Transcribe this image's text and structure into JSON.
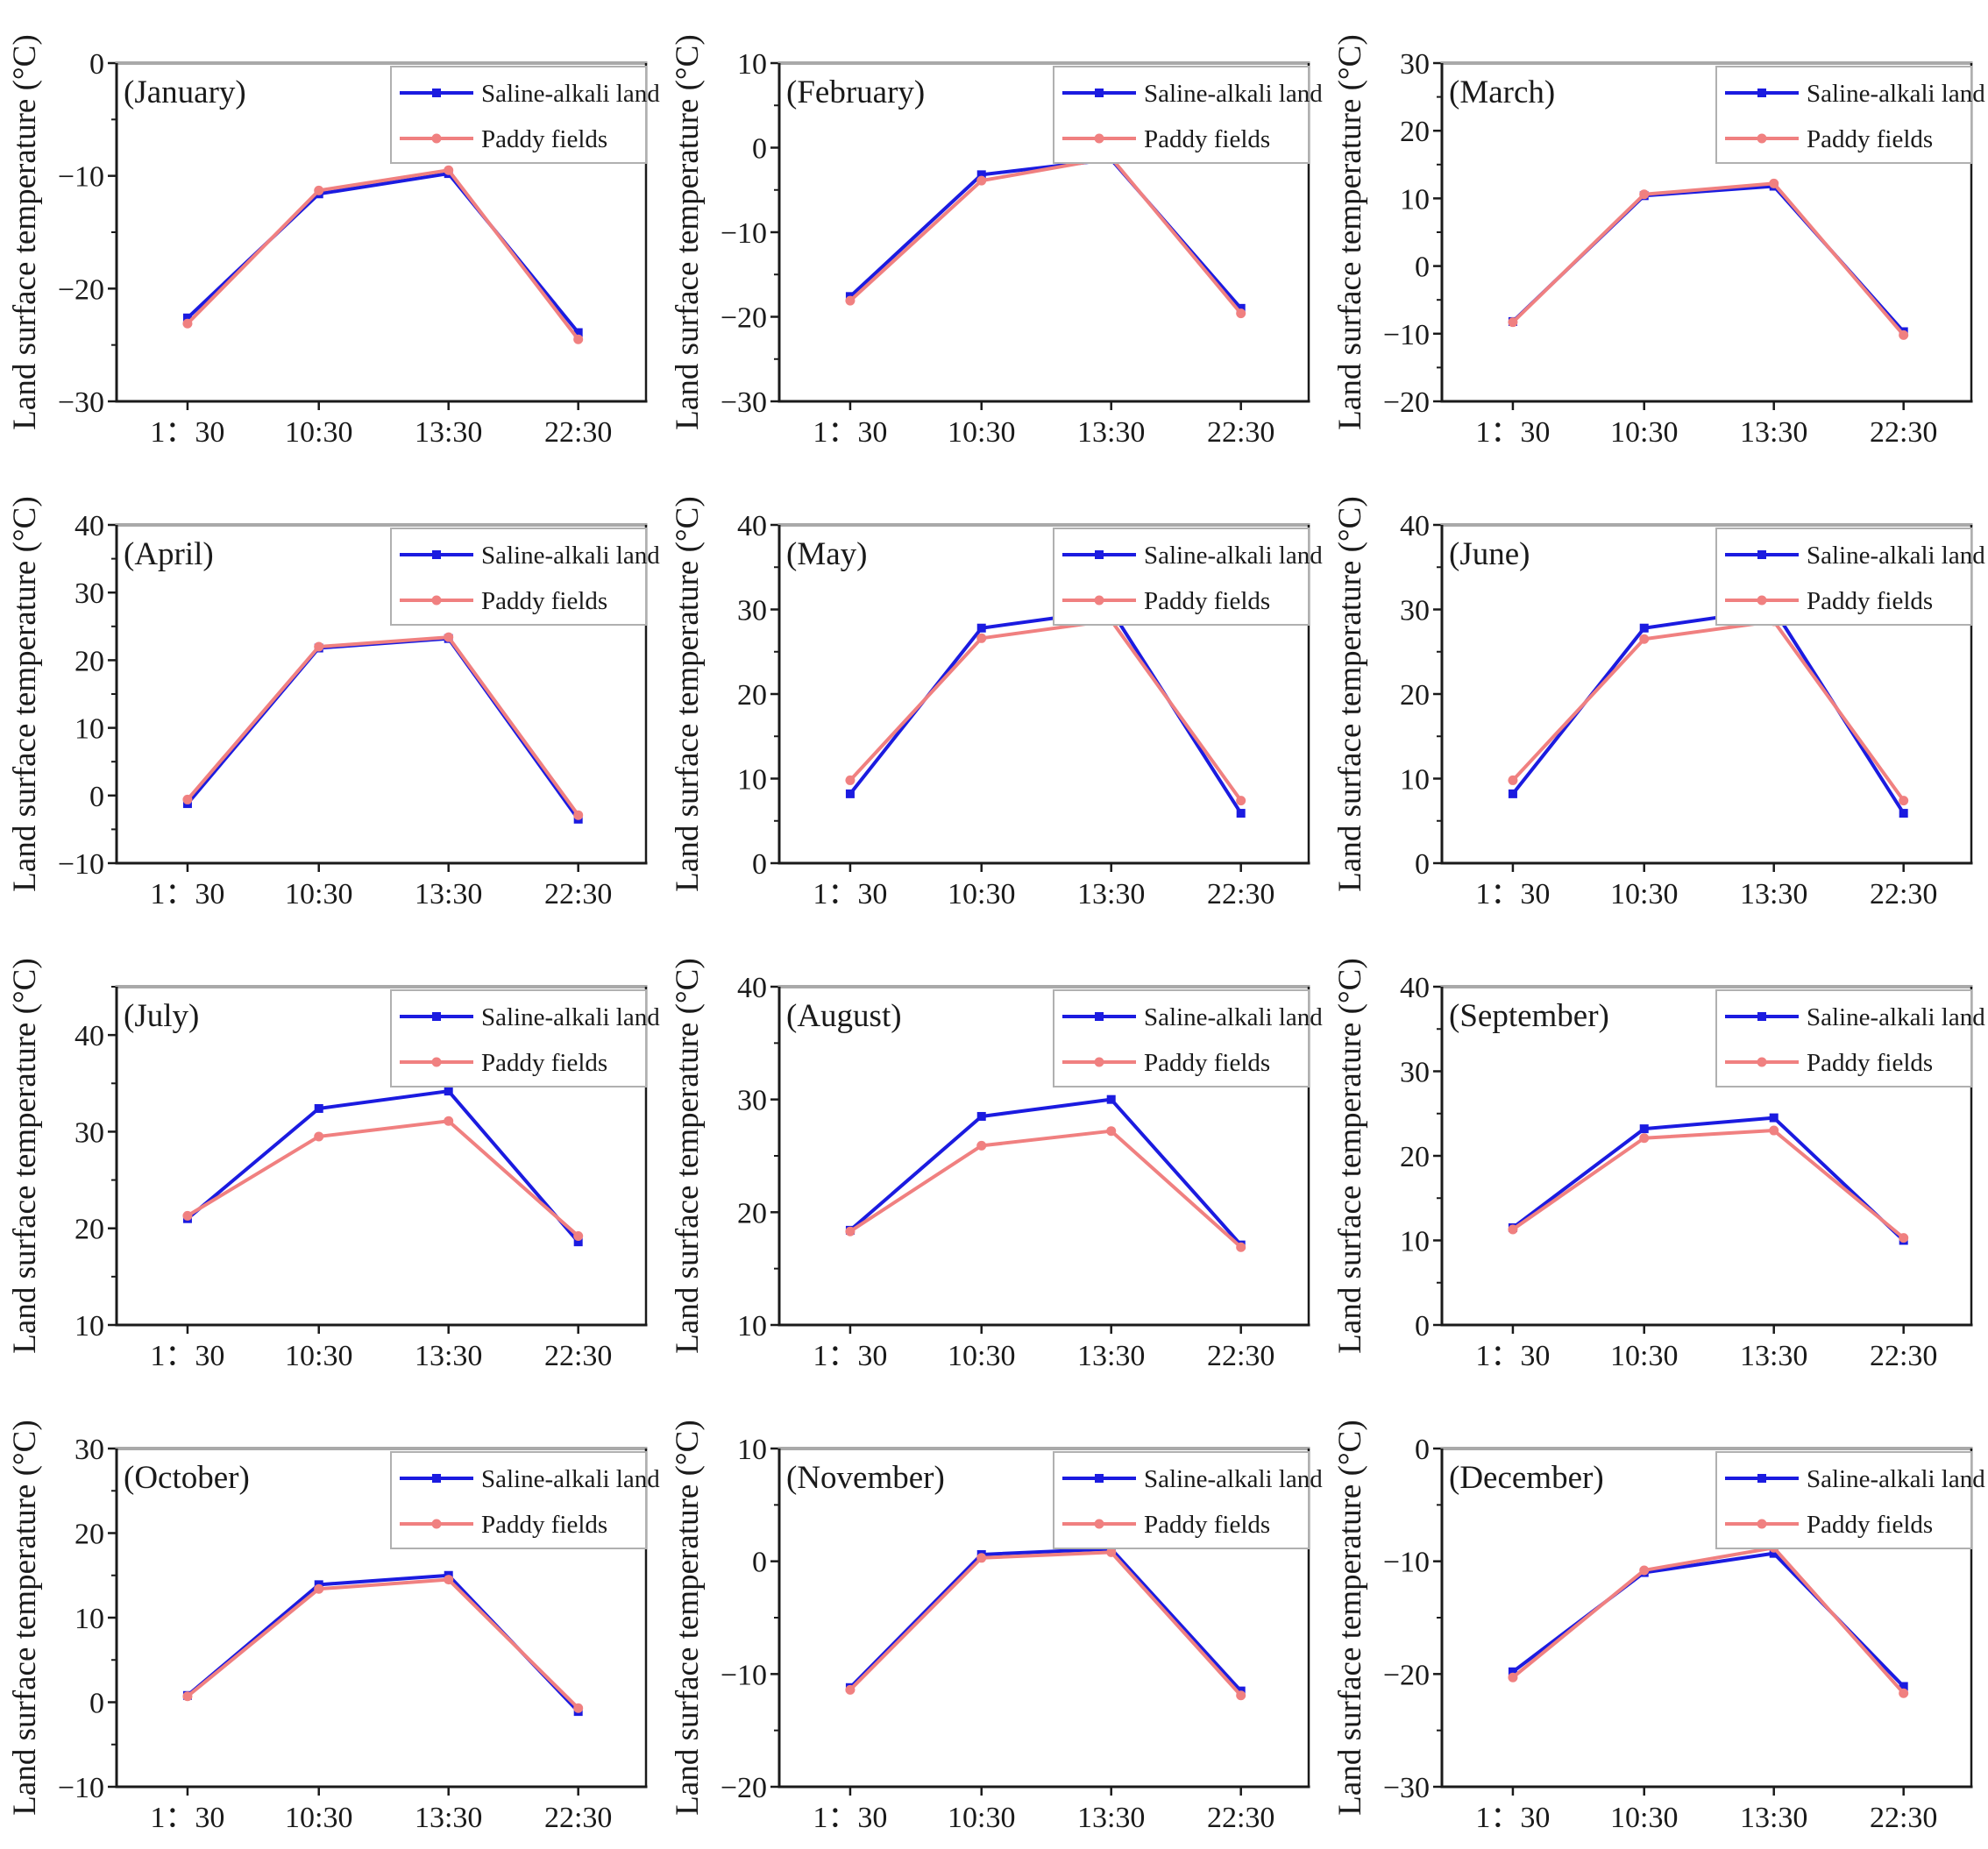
{
  "page": {
    "background": "#ffffff",
    "layout": "3x4-grid-of-monthly-line-charts"
  },
  "colors": {
    "saline": "#1b1be0",
    "paddy": "#f08080",
    "frame": "#1a1a1a",
    "frame_top": "#a9a9a9",
    "legend_border": "#b0b0b0",
    "text": "#1a1a1a"
  },
  "legend": {
    "items": [
      {
        "label": "Saline-alkali land",
        "series": "saline",
        "marker": "square"
      },
      {
        "label": "Paddy fields",
        "series": "paddy",
        "marker": "circle"
      }
    ],
    "position": "top-right"
  },
  "axis": {
    "ylabel": "Land surface temperature (°C)",
    "categories": [
      "1：30",
      "10:30",
      "13:30",
      "22:30"
    ]
  },
  "chart_data": [
    {
      "type": "line",
      "title": "(January)",
      "ylabel": "Land surface temperature (°C)",
      "xlabel": "",
      "categories": [
        "1：30",
        "10:30",
        "13:30",
        "22:30"
      ],
      "ylim": [
        -30,
        0
      ],
      "ytick_step": 10,
      "grid": false,
      "legend_position": "top-right",
      "series": [
        {
          "name": "Saline-alkali land",
          "color": "#1b1be0",
          "marker": "square",
          "values": [
            -22.6,
            -11.6,
            -9.8,
            -23.9
          ]
        },
        {
          "name": "Paddy fields",
          "color": "#f08080",
          "marker": "circle",
          "values": [
            -23.1,
            -11.3,
            -9.5,
            -24.5
          ]
        }
      ]
    },
    {
      "type": "line",
      "title": "(February)",
      "ylabel": "Land surface temperature (°C)",
      "xlabel": "",
      "categories": [
        "1：30",
        "10:30",
        "13:30",
        "22:30"
      ],
      "ylim": [
        -30,
        10
      ],
      "ytick_step": 10,
      "grid": false,
      "legend_position": "top-right",
      "series": [
        {
          "name": "Saline-alkali land",
          "color": "#1b1be0",
          "marker": "square",
          "values": [
            -17.6,
            -3.2,
            -1.4,
            -19.0
          ]
        },
        {
          "name": "Paddy fields",
          "color": "#f08080",
          "marker": "circle",
          "values": [
            -18.1,
            -3.9,
            -1.2,
            -19.6
          ]
        }
      ]
    },
    {
      "type": "line",
      "title": "(March)",
      "ylabel": "Land surface temperature (°C)",
      "xlabel": "",
      "categories": [
        "1：30",
        "10:30",
        "13:30",
        "22:30"
      ],
      "ylim": [
        -20,
        30
      ],
      "ytick_step": 10,
      "grid": false,
      "legend_position": "top-right",
      "series": [
        {
          "name": "Saline-alkali land",
          "color": "#1b1be0",
          "marker": "square",
          "values": [
            -8.2,
            10.4,
            11.8,
            -9.7
          ]
        },
        {
          "name": "Paddy fields",
          "color": "#f08080",
          "marker": "circle",
          "values": [
            -8.3,
            10.6,
            12.2,
            -10.2
          ]
        }
      ]
    },
    {
      "type": "line",
      "title": "(April)",
      "ylabel": "Land surface temperature (°C)",
      "xlabel": "",
      "categories": [
        "1：30",
        "10:30",
        "13:30",
        "22:30"
      ],
      "ylim": [
        -10,
        40
      ],
      "ytick_step": 10,
      "grid": false,
      "legend_position": "top-right",
      "series": [
        {
          "name": "Saline-alkali land",
          "color": "#1b1be0",
          "marker": "square",
          "values": [
            -1.2,
            21.8,
            23.2,
            -3.5
          ]
        },
        {
          "name": "Paddy fields",
          "color": "#f08080",
          "marker": "circle",
          "values": [
            -0.6,
            22.0,
            23.4,
            -2.9
          ]
        }
      ]
    },
    {
      "type": "line",
      "title": "(May)",
      "ylabel": "Land surface temperature (°C)",
      "xlabel": "",
      "categories": [
        "1：30",
        "10:30",
        "13:30",
        "22:30"
      ],
      "ylim": [
        0,
        40
      ],
      "ytick_step": 10,
      "grid": false,
      "legend_position": "top-right",
      "series": [
        {
          "name": "Saline-alkali land",
          "color": "#1b1be0",
          "marker": "square",
          "values": [
            8.2,
            27.8,
            29.9,
            5.9
          ]
        },
        {
          "name": "Paddy fields",
          "color": "#f08080",
          "marker": "circle",
          "values": [
            9.8,
            26.6,
            28.7,
            7.4
          ]
        }
      ]
    },
    {
      "type": "line",
      "title": "(June)",
      "ylabel": "Land surface temperature (°C)",
      "xlabel": "",
      "categories": [
        "1：30",
        "10:30",
        "13:30",
        "22:30"
      ],
      "ylim": [
        0,
        40
      ],
      "ytick_step": 10,
      "grid": false,
      "legend_position": "top-right",
      "series": [
        {
          "name": "Saline-alkali land",
          "color": "#1b1be0",
          "marker": "square",
          "values": [
            8.2,
            27.8,
            30.0,
            5.9
          ]
        },
        {
          "name": "Paddy fields",
          "color": "#f08080",
          "marker": "circle",
          "values": [
            9.8,
            26.5,
            28.6,
            7.4
          ]
        }
      ]
    },
    {
      "type": "line",
      "title": "(July)",
      "ylabel": "Land surface temperature (°C)",
      "xlabel": "",
      "categories": [
        "1：30",
        "10:30",
        "13:30",
        "22:30"
      ],
      "ylim": [
        10,
        45
      ],
      "ytick_step": 10,
      "grid": false,
      "legend_position": "top-right",
      "series": [
        {
          "name": "Saline-alkali land",
          "color": "#1b1be0",
          "marker": "square",
          "values": [
            21.0,
            32.4,
            34.2,
            18.6
          ]
        },
        {
          "name": "Paddy fields",
          "color": "#f08080",
          "marker": "circle",
          "values": [
            21.3,
            29.5,
            31.1,
            19.2
          ]
        }
      ]
    },
    {
      "type": "line",
      "title": "(August)",
      "ylabel": "Land surface temperature (°C)",
      "xlabel": "",
      "categories": [
        "1：30",
        "10:30",
        "13:30",
        "22:30"
      ],
      "ylim": [
        10,
        40
      ],
      "ytick_step": 10,
      "grid": false,
      "legend_position": "top-right",
      "series": [
        {
          "name": "Saline-alkali land",
          "color": "#1b1be0",
          "marker": "square",
          "values": [
            18.4,
            28.5,
            30.0,
            17.1
          ]
        },
        {
          "name": "Paddy fields",
          "color": "#f08080",
          "marker": "circle",
          "values": [
            18.3,
            25.9,
            27.2,
            16.9
          ]
        }
      ]
    },
    {
      "type": "line",
      "title": "(September)",
      "ylabel": "Land surface temperature (°C)",
      "xlabel": "",
      "categories": [
        "1：30",
        "10:30",
        "13:30",
        "22:30"
      ],
      "ylim": [
        0,
        40
      ],
      "ytick_step": 10,
      "grid": false,
      "legend_position": "top-right",
      "series": [
        {
          "name": "Saline-alkali land",
          "color": "#1b1be0",
          "marker": "square",
          "values": [
            11.5,
            23.2,
            24.5,
            10.0
          ]
        },
        {
          "name": "Paddy fields",
          "color": "#f08080",
          "marker": "circle",
          "values": [
            11.3,
            22.1,
            23.0,
            10.3
          ]
        }
      ]
    },
    {
      "type": "line",
      "title": "(October)",
      "ylabel": "Land surface temperature (°C)",
      "xlabel": "",
      "categories": [
        "1：30",
        "10:30",
        "13:30",
        "22:30"
      ],
      "ylim": [
        -10,
        30
      ],
      "ytick_step": 10,
      "grid": false,
      "legend_position": "top-right",
      "series": [
        {
          "name": "Saline-alkali land",
          "color": "#1b1be0",
          "marker": "square",
          "values": [
            0.8,
            13.9,
            15.0,
            -1.1
          ]
        },
        {
          "name": "Paddy fields",
          "color": "#f08080",
          "marker": "circle",
          "values": [
            0.7,
            13.4,
            14.5,
            -0.7
          ]
        }
      ]
    },
    {
      "type": "line",
      "title": "(November)",
      "ylabel": "Land surface temperature (°C)",
      "xlabel": "",
      "categories": [
        "1：30",
        "10:30",
        "13:30",
        "22:30"
      ],
      "ylim": [
        -20,
        10
      ],
      "ytick_step": 10,
      "grid": false,
      "legend_position": "top-right",
      "series": [
        {
          "name": "Saline-alkali land",
          "color": "#1b1be0",
          "marker": "square",
          "values": [
            -11.2,
            0.6,
            1.1,
            -11.5
          ]
        },
        {
          "name": "Paddy fields",
          "color": "#f08080",
          "marker": "circle",
          "values": [
            -11.4,
            0.3,
            0.8,
            -11.9
          ]
        }
      ]
    },
    {
      "type": "line",
      "title": "(December)",
      "ylabel": "Land surface temperature (°C)",
      "xlabel": "",
      "categories": [
        "1：30",
        "10:30",
        "13:30",
        "22:30"
      ],
      "ylim": [
        -30,
        0
      ],
      "ytick_step": 10,
      "grid": false,
      "legend_position": "top-right",
      "series": [
        {
          "name": "Saline-alkali land",
          "color": "#1b1be0",
          "marker": "square",
          "values": [
            -19.8,
            -11.0,
            -9.3,
            -21.1
          ]
        },
        {
          "name": "Paddy fields",
          "color": "#f08080",
          "marker": "circle",
          "values": [
            -20.3,
            -10.8,
            -8.8,
            -21.7
          ]
        }
      ]
    }
  ]
}
